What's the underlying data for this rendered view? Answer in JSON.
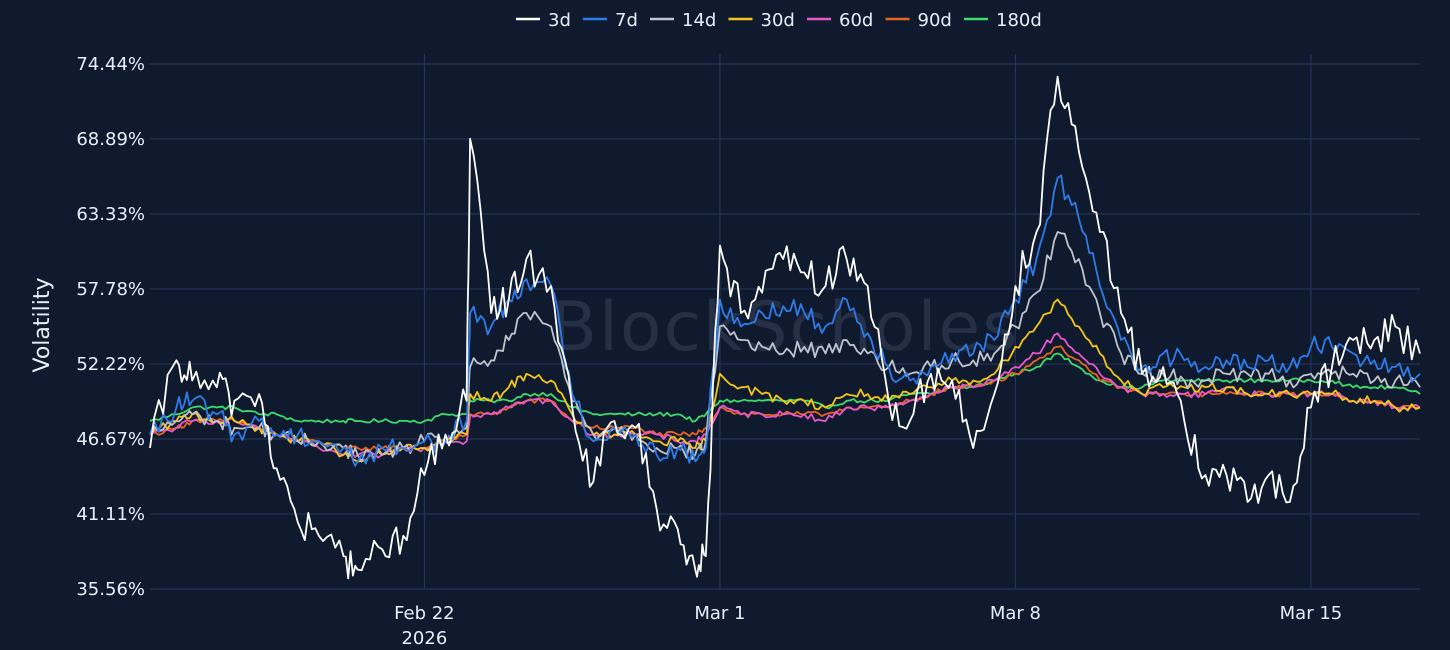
{
  "chart_data": {
    "type": "line",
    "ylabel": "Volatility",
    "y_ticks": [
      "35.56%",
      "41.11%",
      "46.67%",
      "52.22%",
      "57.78%",
      "63.33%",
      "68.89%",
      "74.44%"
    ],
    "ylim": [
      35.56,
      74.44
    ],
    "x_ticks": [
      {
        "date": "2026-02-22",
        "label": "Feb 22",
        "sublabel": "2026"
      },
      {
        "date": "2026-03-01",
        "label": "Mar 1",
        "sublabel": ""
      },
      {
        "date": "2026-03-08",
        "label": "Mar 8",
        "sublabel": ""
      },
      {
        "date": "2026-03-15",
        "label": "Mar 15",
        "sublabel": ""
      }
    ],
    "xlim": [
      "2026-02-15T12:00",
      "2026-03-17T14:00"
    ],
    "grid": true,
    "legend_position": "top-center",
    "watermark": "BlockScholes",
    "x": [
      "2026-02-15T12:00",
      "2026-02-16T03:00",
      "2026-02-16T12:00",
      "2026-02-17T02:00",
      "2026-02-17T12:00",
      "2026-02-18T02:00",
      "2026-02-18T12:00",
      "2026-02-19T00:00",
      "2026-02-19T12:00",
      "2026-02-20T02:00",
      "2026-02-20T10:00",
      "2026-02-21T00:00",
      "2026-02-21T12:00",
      "2026-02-22T00:00",
      "2026-02-22T12:00",
      "2026-02-23T00:00",
      "2026-02-23T02:00",
      "2026-02-23T14:00",
      "2026-02-24T00:00",
      "2026-02-24T10:00",
      "2026-02-25T00:00",
      "2026-02-25T12:00",
      "2026-02-26T00:00",
      "2026-02-26T12:00",
      "2026-02-27T00:00",
      "2026-02-27T12:00",
      "2026-02-28T00:00",
      "2026-02-28T10:00",
      "2026-02-28T16:00",
      "2026-03-01T00:00",
      "2026-03-01T12:00",
      "2026-03-02T00:00",
      "2026-03-02T12:00",
      "2026-03-03T00:00",
      "2026-03-03T12:00",
      "2026-03-04T00:00",
      "2026-03-04T12:00",
      "2026-03-05T00:00",
      "2026-03-05T12:00",
      "2026-03-06T00:00",
      "2026-03-06T12:00",
      "2026-03-07T00:00",
      "2026-03-07T12:00",
      "2026-03-08T00:00",
      "2026-03-08T12:00",
      "2026-03-09T00:00",
      "2026-03-09T12:00",
      "2026-03-10T00:00",
      "2026-03-10T12:00",
      "2026-03-11T00:00",
      "2026-03-11T12:00",
      "2026-03-12T00:00",
      "2026-03-12T12:00",
      "2026-03-13T00:00",
      "2026-03-13T12:00",
      "2026-03-14T00:00",
      "2026-03-14T12:00",
      "2026-03-15T00:00",
      "2026-03-15T12:00",
      "2026-03-16T00:00",
      "2026-03-16T12:00",
      "2026-03-17T00:00",
      "2026-03-17T14:00"
    ],
    "series": [
      {
        "name": "3d",
        "color": "#ffffff",
        "values": [
          46.0,
          52.5,
          51.0,
          50.5,
          49.5,
          50.0,
          44.5,
          40.5,
          39.5,
          38.0,
          37.0,
          38.5,
          39.5,
          44.0,
          47.0,
          49.5,
          68.9,
          56.0,
          57.0,
          60.0,
          58.0,
          49.0,
          43.5,
          48.0,
          47.5,
          41.5,
          40.0,
          37.0,
          38.0,
          61.0,
          56.0,
          57.5,
          60.0,
          59.0,
          58.0,
          60.0,
          58.0,
          49.5,
          48.0,
          51.5,
          51.0,
          46.0,
          50.0,
          58.0,
          62.0,
          73.5,
          68.0,
          62.0,
          56.0,
          51.5,
          52.0,
          48.0,
          44.0,
          44.0,
          42.0,
          44.0,
          42.0,
          49.0,
          52.0,
          54.0,
          54.0,
          55.0,
          53.0
        ]
      },
      {
        "name": "7d",
        "color": "#2f7be8",
        "values": [
          47.0,
          49.0,
          49.5,
          48.5,
          47.0,
          48.0,
          47.0,
          47.0,
          46.5,
          46.0,
          45.0,
          46.0,
          46.0,
          46.5,
          46.5,
          48.0,
          56.0,
          55.0,
          57.0,
          58.5,
          58.0,
          50.0,
          46.5,
          47.5,
          47.0,
          45.5,
          46.0,
          45.0,
          46.0,
          57.0,
          55.0,
          56.0,
          56.5,
          56.0,
          55.0,
          57.0,
          54.5,
          52.0,
          51.0,
          52.0,
          53.0,
          53.0,
          54.0,
          57.0,
          60.0,
          66.0,
          63.0,
          58.0,
          54.0,
          52.0,
          53.0,
          52.5,
          52.0,
          52.5,
          52.0,
          52.5,
          52.0,
          53.5,
          53.5,
          53.0,
          52.5,
          52.0,
          51.5
        ]
      },
      {
        "name": "14d",
        "color": "#c0c4cc",
        "values": [
          47.0,
          48.0,
          48.5,
          48.0,
          47.5,
          47.5,
          47.0,
          46.5,
          46.5,
          46.0,
          45.5,
          45.5,
          46.0,
          46.5,
          46.5,
          47.5,
          52.0,
          52.5,
          54.0,
          56.0,
          55.0,
          49.5,
          47.0,
          47.5,
          47.0,
          46.0,
          46.0,
          45.5,
          46.5,
          55.0,
          54.0,
          53.5,
          53.0,
          53.5,
          53.0,
          54.0,
          53.0,
          52.0,
          51.5,
          52.0,
          52.5,
          52.5,
          53.0,
          55.0,
          57.5,
          62.0,
          60.0,
          56.0,
          53.0,
          51.5,
          51.5,
          51.0,
          51.0,
          51.5,
          51.5,
          51.5,
          51.0,
          51.5,
          51.5,
          51.5,
          51.0,
          51.0,
          50.5
        ]
      },
      {
        "name": "30d",
        "color": "#f5c518",
        "values": [
          47.0,
          48.0,
          48.5,
          48.0,
          48.0,
          47.5,
          47.0,
          46.5,
          46.5,
          45.5,
          45.0,
          45.5,
          46.0,
          46.0,
          46.5,
          47.0,
          50.0,
          49.5,
          50.5,
          51.5,
          51.0,
          48.5,
          47.0,
          47.0,
          47.0,
          46.5,
          46.5,
          46.0,
          46.5,
          51.5,
          50.5,
          50.0,
          49.5,
          49.5,
          49.0,
          50.0,
          50.0,
          49.5,
          50.0,
          50.5,
          51.0,
          51.0,
          51.5,
          53.5,
          55.0,
          57.0,
          55.0,
          53.0,
          51.0,
          50.0,
          50.5,
          50.5,
          50.5,
          50.5,
          50.0,
          50.0,
          50.0,
          50.0,
          50.0,
          49.5,
          49.5,
          49.0,
          49.0
        ]
      },
      {
        "name": "60d",
        "color": "#e858c8",
        "values": [
          47.0,
          47.5,
          48.0,
          48.0,
          48.0,
          47.5,
          47.0,
          46.5,
          46.0,
          45.5,
          45.5,
          45.5,
          46.0,
          46.0,
          46.5,
          46.5,
          48.5,
          48.5,
          49.0,
          49.5,
          49.5,
          48.0,
          47.0,
          47.0,
          47.0,
          47.0,
          46.5,
          46.5,
          47.0,
          49.0,
          48.5,
          48.5,
          48.5,
          48.5,
          48.0,
          49.0,
          49.0,
          49.0,
          49.5,
          50.0,
          50.5,
          50.5,
          51.0,
          52.0,
          53.0,
          54.5,
          53.0,
          51.5,
          50.5,
          50.0,
          50.0,
          50.0,
          50.0,
          50.5,
          50.0,
          50.0,
          50.0,
          50.0,
          50.0,
          49.5,
          49.5,
          49.0,
          49.0
        ]
      },
      {
        "name": "90d",
        "color": "#e8641e",
        "values": [
          47.0,
          47.5,
          48.0,
          48.0,
          48.0,
          47.5,
          47.0,
          46.5,
          46.5,
          46.0,
          46.0,
          46.0,
          46.0,
          46.0,
          46.5,
          47.0,
          48.5,
          48.5,
          49.0,
          49.5,
          49.5,
          48.0,
          47.5,
          47.5,
          47.5,
          47.0,
          47.0,
          47.0,
          47.5,
          49.0,
          48.5,
          48.5,
          48.5,
          48.5,
          48.5,
          49.0,
          49.0,
          49.0,
          49.5,
          50.0,
          50.5,
          50.5,
          51.0,
          51.5,
          52.5,
          53.5,
          52.5,
          51.0,
          50.5,
          50.0,
          50.0,
          50.0,
          50.0,
          50.0,
          50.0,
          50.0,
          50.0,
          50.0,
          50.0,
          49.5,
          49.5,
          49.0,
          49.0
        ]
      },
      {
        "name": "180d",
        "color": "#3ddc6a",
        "values": [
          48.0,
          48.5,
          49.0,
          49.0,
          49.0,
          48.5,
          48.5,
          48.0,
          48.0,
          48.0,
          48.0,
          48.0,
          48.0,
          48.0,
          48.5,
          48.5,
          49.5,
          49.5,
          49.5,
          50.0,
          50.0,
          49.0,
          48.5,
          48.5,
          48.5,
          48.5,
          48.5,
          48.0,
          48.5,
          49.5,
          49.5,
          49.5,
          49.5,
          49.5,
          49.0,
          49.5,
          49.5,
          49.5,
          50.0,
          50.0,
          50.5,
          50.5,
          51.0,
          51.5,
          52.0,
          53.0,
          52.0,
          51.0,
          50.5,
          50.5,
          51.0,
          51.0,
          51.0,
          51.0,
          51.0,
          51.0,
          51.0,
          51.0,
          51.0,
          50.5,
          50.5,
          50.5,
          50.0
        ]
      }
    ]
  }
}
